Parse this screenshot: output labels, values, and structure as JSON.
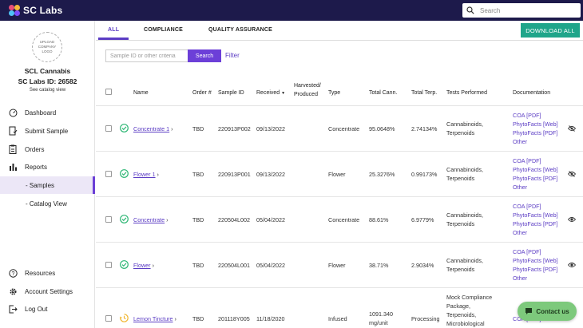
{
  "brand": {
    "name": "SC Labs"
  },
  "topbar": {
    "search_placeholder": "Search"
  },
  "sidebar": {
    "upload_logo": "UPLOAD COMPANY LOGO",
    "company_name": "SCL Cannabis",
    "lab_id": "SC Labs ID: 26582",
    "catalog_link": "See catalog view",
    "nav": {
      "dashboard": "Dashboard",
      "submit_sample": "Submit Sample",
      "orders": "Orders",
      "reports": "Reports",
      "samples": "- Samples",
      "catalog_view": "- Catalog View",
      "resources": "Resources",
      "account_settings": "Account Settings",
      "log_out": "Log Out"
    }
  },
  "tabs": {
    "all": "ALL",
    "compliance": "COMPLIANCE",
    "quality_assurance": "QUALITY ASSURANCE"
  },
  "toolbar": {
    "download_all": "DOWNLOAD ALL"
  },
  "filters": {
    "search_placeholder": "Sample ID or other criteria",
    "search_button": "Search",
    "filter_link": "Filter"
  },
  "table": {
    "headers": {
      "name": "Name",
      "order": "Order #",
      "sample_id": "Sample ID",
      "received": "Received",
      "harvested_line1": "Harvested/",
      "harvested_line2": "Produced",
      "type": "Type",
      "total_cann": "Total Cann.",
      "total_terp": "Total Terp.",
      "tests": "Tests Performed",
      "documentation": "Documentation"
    },
    "rows": [
      {
        "name": "Concentrate 1",
        "order": "TBD",
        "sample_id": "220913P002",
        "received": "09/13/2022",
        "harvested": "",
        "type": "Concentrate",
        "total_cann": "95.0648%",
        "total_terp": "2.74134%",
        "tests": [
          "Cannabinoids,",
          "Terpenoids"
        ],
        "docs": [
          "COA [PDF]",
          "PhytoFacts [Web]",
          "PhytoFacts [PDF]",
          "Other"
        ],
        "status": "complete",
        "visibility": "hidden"
      },
      {
        "name": "Flower 1",
        "order": "TBD",
        "sample_id": "220913P001",
        "received": "09/13/2022",
        "harvested": "",
        "type": "Flower",
        "total_cann": "25.3276%",
        "total_terp": "0.99173%",
        "tests": [
          "Cannabinoids,",
          "Terpenoids"
        ],
        "docs": [
          "COA [PDF]",
          "PhytoFacts [Web]",
          "PhytoFacts [PDF]",
          "Other"
        ],
        "status": "complete",
        "visibility": "hidden"
      },
      {
        "name": "Concentrate",
        "order": "TBD",
        "sample_id": "220504L002",
        "received": "05/04/2022",
        "harvested": "",
        "type": "Concentrate",
        "total_cann": "88.61%",
        "total_terp": "6.9779%",
        "tests": [
          "Cannabinoids,",
          "Terpenoids"
        ],
        "docs": [
          "COA [PDF]",
          "PhytoFacts [Web]",
          "PhytoFacts [PDF]",
          "Other"
        ],
        "status": "complete",
        "visibility": "visible"
      },
      {
        "name": "Flower",
        "order": "TBD",
        "sample_id": "220504L001",
        "received": "05/04/2022",
        "harvested": "",
        "type": "Flower",
        "total_cann": "38.71%",
        "total_terp": "2.9034%",
        "tests": [
          "Cannabinoids,",
          "Terpenoids"
        ],
        "docs": [
          "COA [PDF]",
          "PhytoFacts [Web]",
          "PhytoFacts [PDF]",
          "Other"
        ],
        "status": "complete",
        "visibility": "visible"
      },
      {
        "name": "Lemon Tincture",
        "order": "TBD",
        "sample_id": "201118Y005",
        "received": "11/18/2020",
        "harvested": "",
        "type": "Infused",
        "total_cann": "1091.340 mg/unit",
        "total_terp": "Processing",
        "tests": [
          "Mock Compliance",
          "Package,",
          "Terpenoids,",
          "Microbiological"
        ],
        "docs": [
          "COA [PDF]"
        ],
        "status": "processing",
        "visibility": ""
      }
    ]
  },
  "contact": {
    "label": "Contact us"
  },
  "colors": {
    "navy": "#1d1a4b",
    "purple": "#5b3cc4",
    "teal": "#1fa58a",
    "green_check": "#2bb673",
    "processing": "#f0b429",
    "contact_green": "#7dc97c"
  }
}
